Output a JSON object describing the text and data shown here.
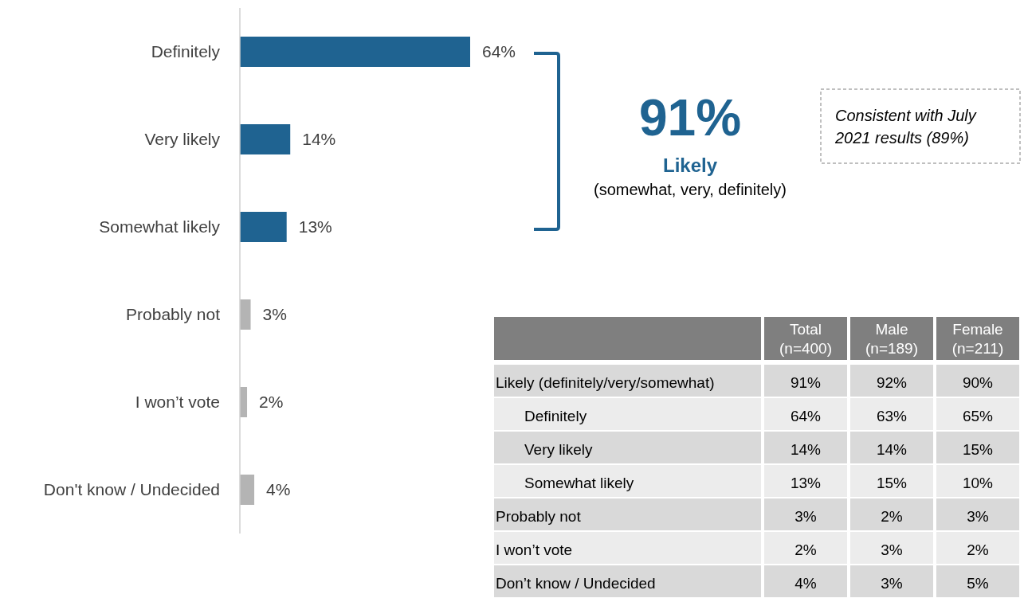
{
  "chart_data": [
    {
      "type": "bar",
      "orientation": "horizontal",
      "categories": [
        "Definitely",
        "Very likely",
        "Somewhat likely",
        "Probably not",
        "I won’t vote",
        "Don't know / Undecided"
      ],
      "values": [
        64,
        14,
        13,
        3,
        2,
        4
      ],
      "value_labels": [
        "64%",
        "14%",
        "13%",
        "3%",
        "2%",
        "4%"
      ],
      "colors": [
        "#1f6391",
        "#1f6391",
        "#1f6391",
        "#b4b4b4",
        "#b4b4b4",
        "#b4b4b4"
      ],
      "annotations": [
        "91%",
        "Likely",
        "(somewhat, very, definitely)",
        "Consistent with July 2021 results (89%)"
      ]
    },
    {
      "type": "other",
      "categories": [
        "Total (n=400)",
        "Male (n=189)",
        "Female (n=211)"
      ],
      "y_categories": [
        "Likely (definitely/very/somewhat)",
        "Definitely",
        "Very likely",
        "Somewhat likely",
        "Probably not",
        "I won’t vote",
        "Don’t know / Undecided"
      ],
      "cell_labels": [
        [
          "91%",
          "92%",
          "90%"
        ],
        [
          "64%",
          "63%",
          "65%"
        ],
        [
          "14%",
          "14%",
          "15%"
        ],
        [
          "13%",
          "15%",
          "10%"
        ],
        [
          "3%",
          "2%",
          "3%"
        ],
        [
          "2%",
          "3%",
          "2%"
        ],
        [
          "4%",
          "3%",
          "5%"
        ]
      ]
    }
  ]
}
